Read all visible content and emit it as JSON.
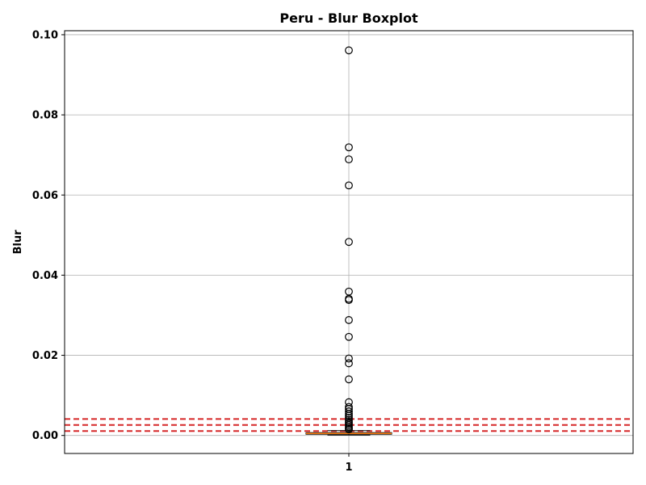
{
  "chart_data": {
    "type": "boxplot",
    "title": "Peru - Blur Boxplot",
    "xlabel": "",
    "ylabel": "Blur",
    "ylim": [
      -0.0045,
      0.101
    ],
    "y_ticks": [
      0.0,
      0.02,
      0.04,
      0.06,
      0.08,
      0.1
    ],
    "y_tick_labels": [
      "0.00",
      "0.02",
      "0.04",
      "0.06",
      "0.08",
      "0.10"
    ],
    "categories": [
      "1"
    ],
    "grid": true,
    "box": {
      "q1": 0.0003,
      "median": 0.0005,
      "q3": 0.0007,
      "whisker_low": 0.0001,
      "whisker_high": 0.0012
    },
    "outliers": [
      0.0961,
      0.0719,
      0.0689,
      0.0624,
      0.0483,
      0.0359,
      0.0341,
      0.0338,
      0.0288,
      0.0246,
      0.0192,
      0.018,
      0.014,
      0.0083,
      0.0071,
      0.0066,
      0.006,
      0.0054,
      0.0049,
      0.0044,
      0.0039,
      0.0034,
      0.003,
      0.0026,
      0.0022,
      0.0018,
      0.0015
    ],
    "reference_lines": [
      0.0041,
      0.0026,
      0.0011
    ],
    "colors": {
      "median": "#ff7f0e",
      "reference": "#d62728",
      "grid": "#b0b0b0",
      "box": "#000000"
    }
  }
}
